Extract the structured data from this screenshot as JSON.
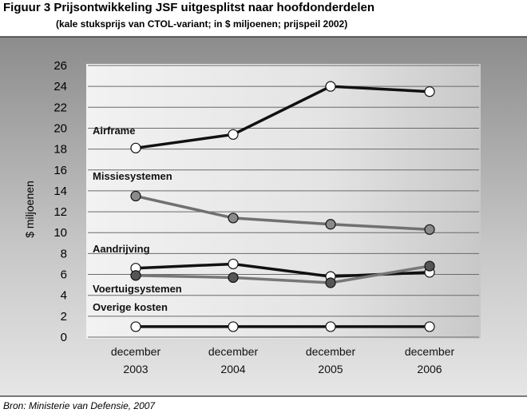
{
  "chart_data": {
    "type": "line",
    "title": "Figuur 3 Prijsontwikkeling JSF uitgesplitst naar hoofdonderdelen",
    "subtitle": "(kale stuksprijs van CTOL-variant; in $ miljoenen; prijspeil 2002)",
    "y_label": "$ miljoenen",
    "source": "Bron: Ministerie van Defensie, 2007",
    "categories": [
      "december 2003",
      "december 2004",
      "december 2005",
      "december 2006"
    ],
    "ylim": [
      0,
      26
    ],
    "yticks": [
      0,
      2,
      4,
      6,
      8,
      10,
      12,
      14,
      16,
      18,
      20,
      22,
      24,
      26
    ],
    "grid": true,
    "series": [
      {
        "name": "Airframe",
        "color": "#111111",
        "marker_color": "#ffffff",
        "values": [
          18.1,
          19.4,
          24.0,
          23.5
        ]
      },
      {
        "name": "Missiesystemen",
        "color": "#707070",
        "marker_color": "#8a8a8a",
        "values": [
          13.5,
          11.4,
          10.8,
          10.3
        ]
      },
      {
        "name": "Aandrijving",
        "color": "#111111",
        "marker_color": "#ffffff",
        "values": [
          6.6,
          7.0,
          5.8,
          6.2
        ]
      },
      {
        "name": "Voertuigsystemen",
        "color": "#777777",
        "marker_color": "#555555",
        "values": [
          5.9,
          5.7,
          5.2,
          6.8
        ]
      },
      {
        "name": "Overige kosten",
        "color": "#111111",
        "marker_color": "#ffffff",
        "values": [
          1,
          1,
          1,
          1
        ]
      }
    ]
  }
}
